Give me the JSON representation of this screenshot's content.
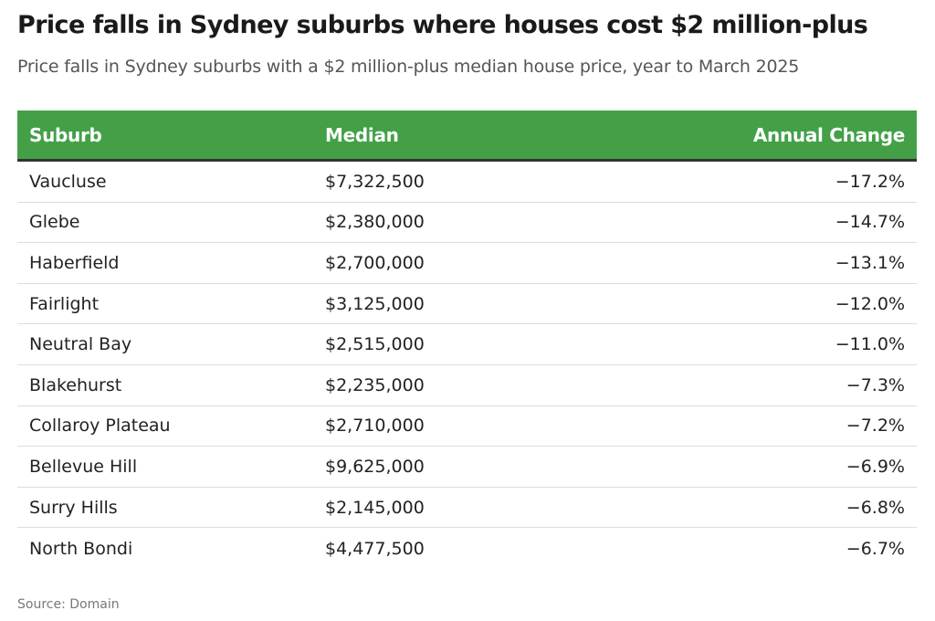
{
  "title": "Price falls in Sydney suburbs where houses cost $2 million-plus",
  "subtitle": "Price falls in Sydney suburbs with a $2 million-plus median house price, year to March 2025",
  "source": "Source: Domain",
  "colors": {
    "header_bg": "#43a047",
    "header_text": "#ffffff",
    "header_border": "#333333"
  },
  "chart_data": {
    "type": "table",
    "title": "Price falls in Sydney suburbs where houses cost $2 million-plus",
    "subtitle": "Price falls in Sydney suburbs with a $2 million-plus median house price, year to March 2025",
    "columns": [
      "Suburb",
      "Median",
      "Annual Change"
    ],
    "rows": [
      [
        "Vaucluse",
        "$7,322,500",
        "−17.2%"
      ],
      [
        "Glebe",
        "$2,380,000",
        "−14.7%"
      ],
      [
        "Haberfield",
        "$2,700,000",
        "−13.1%"
      ],
      [
        "Fairlight",
        "$3,125,000",
        "−12.0%"
      ],
      [
        "Neutral Bay",
        "$2,515,000",
        "−11.0%"
      ],
      [
        "Blakehurst",
        "$2,235,000",
        "−7.3%"
      ],
      [
        "Collaroy Plateau",
        "$2,710,000",
        "−7.2%"
      ],
      [
        "Bellevue Hill",
        "$9,625,000",
        "−6.9%"
      ],
      [
        "Surry Hills",
        "$2,145,000",
        "−6.8%"
      ],
      [
        "North Bondi",
        "$4,477,500",
        "−6.7%"
      ]
    ]
  }
}
